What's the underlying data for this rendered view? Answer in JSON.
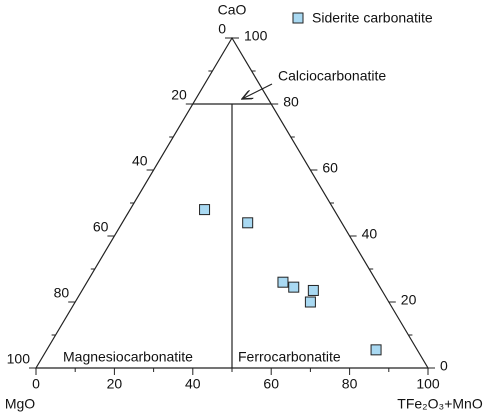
{
  "chart_data": {
    "type": "ternary",
    "top_label": "CaO",
    "left_label": "MgO",
    "right_label": "TFe₂O₃+MnO",
    "ticks": [
      0,
      20,
      40,
      60,
      80,
      100
    ],
    "minor_ticks": [
      10,
      30,
      50,
      70,
      90
    ],
    "field_boundaries": {
      "CaO": 80,
      "TFe2O3_share": 50
    },
    "field_labels": {
      "top": "Calciocarbonatite",
      "left": "Magnesiocarbonatite",
      "right": "Ferrocarbonatite"
    },
    "legend": "upper right",
    "series": [
      {
        "name": "Siderite carbonatite",
        "color": "#a9d9f2",
        "CaO": [
          48,
          44,
          26,
          24.5,
          23.5,
          20,
          5.5
        ],
        "MgO": [
          33,
          24,
          24,
          22,
          17.5,
          20,
          10.5
        ],
        "TFe2O3+MnO": [
          19,
          32,
          50,
          53.5,
          59,
          60,
          84
        ]
      }
    ]
  }
}
